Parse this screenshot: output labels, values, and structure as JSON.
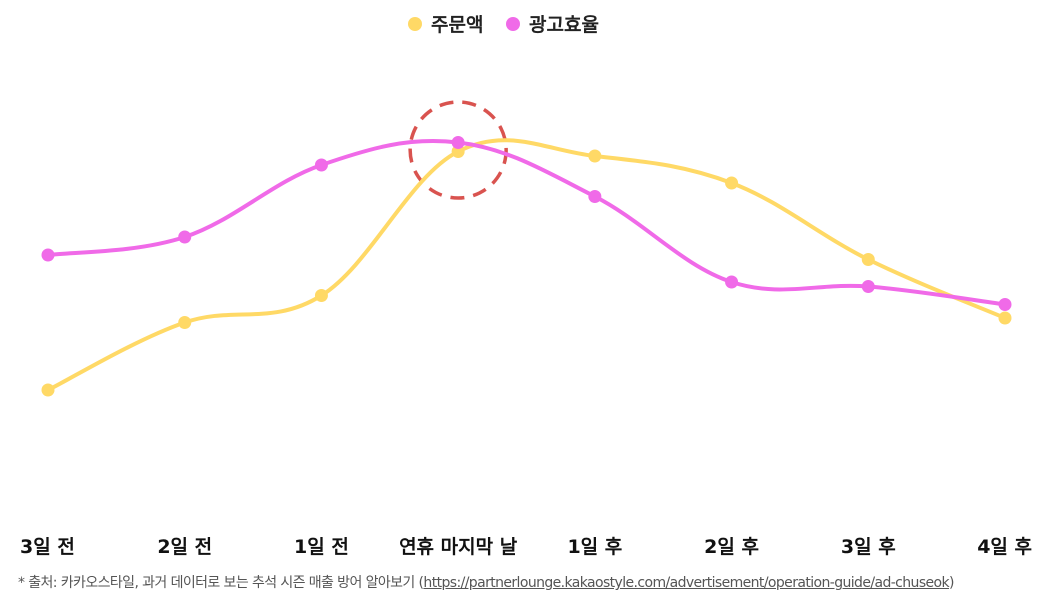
{
  "chart_data": {
    "type": "line",
    "categories": [
      "3일 전",
      "2일 전",
      "1일 전",
      "연휴 마지막 날",
      "1일 후",
      "2일 후",
      "3일 후",
      "4일 후"
    ],
    "series": [
      {
        "name": "주문액",
        "color": "#FFD966",
        "values": [
          20,
          35,
          41,
          73,
          72,
          66,
          49,
          36
        ]
      },
      {
        "name": "광고효율",
        "color": "#F06AE8",
        "values": [
          50,
          54,
          70,
          75,
          63,
          44,
          43,
          39
        ]
      }
    ],
    "ylim": [
      0,
      100
    ],
    "grid": false,
    "yaxis_visible": false,
    "legend": "top-center",
    "highlight": {
      "category": "연휴 마지막 날",
      "color": "#D9534F"
    }
  },
  "source_note": {
    "prefix": "* 출처: 카카오스타일, 과거 데이터로 보는 추석 시즌 매출 방어 알아보기 (",
    "link": "https://partnerlounge.kakaostyle.com/advertisement/operation-guide/ad-chuseok",
    "suffix": ")"
  }
}
